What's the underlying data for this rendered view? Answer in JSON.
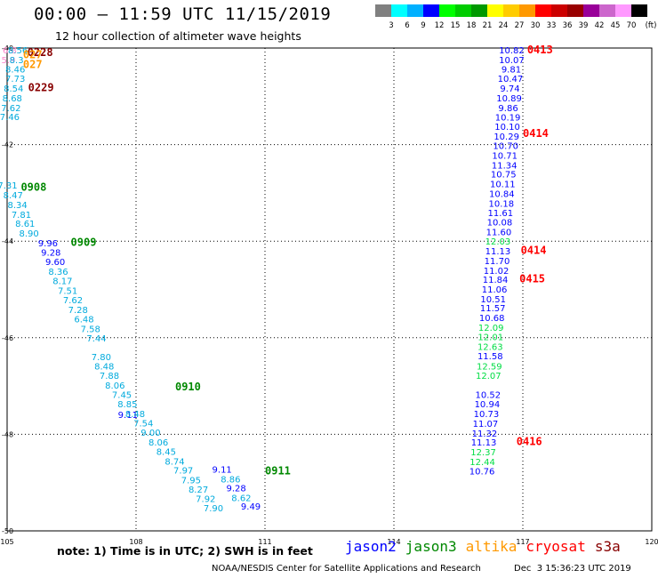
{
  "header": {
    "title": "00:00 – 11:59 UTC 11/15/2019",
    "subtitle": "12 hour collection of altimeter wave heights"
  },
  "colorbar": {
    "colors": [
      "#808080",
      "#00ffff",
      "#00b0ff",
      "#0000ff",
      "#00ff00",
      "#00cc00",
      "#009900",
      "#ffff00",
      "#ffcc00",
      "#ff9900",
      "#ff0000",
      "#cc0000",
      "#990000",
      "#990099",
      "#cc66cc",
      "#ff99ff",
      "#000000"
    ],
    "labels": [
      "3",
      "6",
      "9",
      "12",
      "15",
      "18",
      "21",
      "24",
      "27",
      "30",
      "33",
      "36",
      "39",
      "42",
      "45",
      "70",
      "(ft)"
    ]
  },
  "footer": {
    "note": "note: 1) Time is in UTC; 2) SWH is in feet",
    "credit": "NOAA/NESDIS Center for Satellite Applications and Research",
    "stamp": "Dec  3 15:36:23 UTC 2019"
  },
  "legend": [
    {
      "label": "jason2",
      "color": "#0000ff"
    },
    {
      "label": "jason3",
      "color": "#008800"
    },
    {
      "label": "altika",
      "color": "#ff9900"
    },
    {
      "label": "cryosat",
      "color": "#ff0000"
    },
    {
      "label": "s3a",
      "color": "#880000"
    }
  ],
  "chart_data": {
    "type": "scatter",
    "xlim": [
      105,
      120
    ],
    "ylim": [
      -50,
      -40
    ],
    "xticks": [
      "105",
      "108",
      "111",
      "114",
      "117",
      "120"
    ],
    "yticks": [
      "-40",
      "-42",
      "-44",
      "-46",
      "-48",
      "-50"
    ],
    "grid": true,
    "series": [
      {
        "name": "jason2",
        "color": "#0000ff",
        "points": [
          {
            "x": 116.74,
            "y": -40.04,
            "v": "10.82"
          },
          {
            "x": 116.74,
            "y": -40.24,
            "v": "10.07"
          },
          {
            "x": 116.73,
            "y": -40.43,
            "v": "9.81"
          },
          {
            "x": 116.71,
            "y": -40.63,
            "v": "10.47"
          },
          {
            "x": 116.7,
            "y": -40.83,
            "v": "9.74"
          },
          {
            "x": 116.68,
            "y": -41.03,
            "v": "10.89"
          },
          {
            "x": 116.66,
            "y": -41.23,
            "v": "9.86"
          },
          {
            "x": 116.65,
            "y": -41.43,
            "v": "10.19"
          },
          {
            "x": 116.64,
            "y": -41.62,
            "v": "10.10"
          },
          {
            "x": 116.62,
            "y": -41.82,
            "v": "10.29"
          },
          {
            "x": 116.6,
            "y": -42.02,
            "v": "10.70"
          },
          {
            "x": 116.58,
            "y": -42.22,
            "v": "10.71"
          },
          {
            "x": 116.57,
            "y": -42.42,
            "v": "11.34"
          },
          {
            "x": 116.55,
            "y": -42.61,
            "v": "10.75"
          },
          {
            "x": 116.53,
            "y": -42.81,
            "v": "10.11"
          },
          {
            "x": 116.51,
            "y": -43.01,
            "v": "10.84"
          },
          {
            "x": 116.5,
            "y": -43.21,
            "v": "10.18"
          },
          {
            "x": 116.48,
            "y": -43.41,
            "v": "11.61"
          },
          {
            "x": 116.46,
            "y": -43.6,
            "v": "10.08"
          },
          {
            "x": 116.44,
            "y": -43.8,
            "v": "11.60"
          },
          {
            "x": 116.42,
            "y": -44.2,
            "v": "11.13"
          },
          {
            "x": 116.4,
            "y": -44.4,
            "v": "11.70"
          },
          {
            "x": 116.38,
            "y": -44.6,
            "v": "11.02"
          },
          {
            "x": 116.36,
            "y": -44.79,
            "v": "11.84"
          },
          {
            "x": 116.34,
            "y": -44.99,
            "v": "11.06"
          },
          {
            "x": 116.31,
            "y": -45.19,
            "v": "10.51"
          },
          {
            "x": 116.3,
            "y": -45.38,
            "v": "11.57"
          },
          {
            "x": 116.28,
            "y": -45.58,
            "v": "10.68"
          },
          {
            "x": 116.24,
            "y": -46.37,
            "v": "11.58"
          },
          {
            "x": 116.19,
            "y": -47.17,
            "v": "10.52"
          },
          {
            "x": 116.17,
            "y": -47.37,
            "v": "10.94"
          },
          {
            "x": 116.15,
            "y": -47.57,
            "v": "10.73"
          },
          {
            "x": 116.13,
            "y": -47.77,
            "v": "11.07"
          },
          {
            "x": 116.11,
            "y": -47.97,
            "v": "11.32"
          },
          {
            "x": 116.09,
            "y": -48.16,
            "v": "11.13"
          },
          {
            "x": 116.05,
            "y": -48.76,
            "v": "10.76"
          },
          {
            "x": 105.95,
            "y": -44.03,
            "v": "9.96"
          },
          {
            "x": 106.02,
            "y": -44.23,
            "v": "9.28"
          },
          {
            "x": 106.12,
            "y": -44.42,
            "v": "9.60"
          },
          {
            "x": 107.81,
            "y": -47.59,
            "v": "9.11"
          },
          {
            "x": 110.0,
            "y": -48.72,
            "v": "9.11"
          },
          {
            "x": 110.33,
            "y": -49.11,
            "v": "9.28"
          },
          {
            "x": 110.67,
            "y": -49.48,
            "v": "9.49"
          }
        ]
      },
      {
        "name": "jason3",
        "color": "#00dd44",
        "points": [
          {
            "x": 116.42,
            "y": -44.0,
            "v": "12.03"
          },
          {
            "x": 116.26,
            "y": -45.78,
            "v": "12.09"
          },
          {
            "x": 116.25,
            "y": -45.98,
            "v": "12.01"
          },
          {
            "x": 116.24,
            "y": -46.18,
            "v": "12.63"
          },
          {
            "x": 116.22,
            "y": -46.58,
            "v": "12.59"
          },
          {
            "x": 116.2,
            "y": -46.78,
            "v": "12.07"
          },
          {
            "x": 116.08,
            "y": -48.36,
            "v": "12.37"
          },
          {
            "x": 116.06,
            "y": -48.56,
            "v": "12.44"
          }
        ]
      },
      {
        "name": "altika",
        "color": "#00aadd",
        "points": [
          {
            "x": 105.19,
            "y": -40.43,
            "v": "8.46"
          },
          {
            "x": 105.19,
            "y": -40.63,
            "v": "7.73"
          },
          {
            "x": 105.15,
            "y": -40.83,
            "v": "8.54"
          },
          {
            "x": 105.12,
            "y": -41.03,
            "v": "8.68"
          },
          {
            "x": 105.09,
            "y": -41.23,
            "v": "7.62"
          },
          {
            "x": 105.06,
            "y": -41.42,
            "v": "7.46"
          },
          {
            "x": 105.01,
            "y": -42.84,
            "v": "7.31"
          },
          {
            "x": 105.14,
            "y": -43.04,
            "v": "8.47"
          },
          {
            "x": 105.24,
            "y": -43.24,
            "v": "8.34"
          },
          {
            "x": 105.33,
            "y": -43.44,
            "v": "7.81"
          },
          {
            "x": 105.42,
            "y": -43.63,
            "v": "8.61"
          },
          {
            "x": 105.51,
            "y": -43.83,
            "v": "8.90"
          },
          {
            "x": 106.19,
            "y": -44.62,
            "v": "8.36"
          },
          {
            "x": 106.29,
            "y": -44.82,
            "v": "8.17"
          },
          {
            "x": 106.41,
            "y": -45.02,
            "v": "7.51"
          },
          {
            "x": 106.53,
            "y": -45.21,
            "v": "7.62"
          },
          {
            "x": 106.65,
            "y": -45.41,
            "v": "7.28"
          },
          {
            "x": 106.79,
            "y": -45.61,
            "v": "6.48"
          },
          {
            "x": 106.94,
            "y": -45.81,
            "v": "7.58"
          },
          {
            "x": 107.08,
            "y": -46.0,
            "v": "7.44"
          },
          {
            "x": 107.19,
            "y": -46.39,
            "v": "7.80"
          },
          {
            "x": 107.26,
            "y": -46.58,
            "v": "8.48"
          },
          {
            "x": 107.38,
            "y": -46.78,
            "v": "7.88"
          },
          {
            "x": 107.51,
            "y": -46.98,
            "v": "8.06"
          },
          {
            "x": 107.67,
            "y": -47.17,
            "v": "7.45"
          },
          {
            "x": 107.8,
            "y": -47.37,
            "v": "8.85"
          },
          {
            "x": 107.98,
            "y": -47.57,
            "v": "8.48"
          },
          {
            "x": 108.17,
            "y": -47.76,
            "v": "7.54"
          },
          {
            "x": 108.34,
            "y": -47.96,
            "v": "9.00"
          },
          {
            "x": 108.52,
            "y": -48.16,
            "v": "8.06"
          },
          {
            "x": 108.7,
            "y": -48.35,
            "v": "8.45"
          },
          {
            "x": 108.9,
            "y": -48.55,
            "v": "8.74"
          },
          {
            "x": 109.1,
            "y": -48.74,
            "v": "7.97"
          },
          {
            "x": 109.28,
            "y": -48.94,
            "v": "7.95"
          },
          {
            "x": 109.45,
            "y": -49.13,
            "v": "8.27"
          },
          {
            "x": 109.62,
            "y": -49.33,
            "v": "7.92"
          },
          {
            "x": 109.8,
            "y": -49.52,
            "v": "7.90"
          },
          {
            "x": 110.2,
            "y": -48.92,
            "v": "8.86"
          },
          {
            "x": 110.45,
            "y": -49.31,
            "v": "8.62"
          }
        ]
      },
      {
        "name": "cryosat",
        "color": "#ff0000",
        "points": []
      },
      {
        "name": "s3a",
        "color": "#880000",
        "points": []
      },
      {
        "name": "",
        "color": "#ff88cc",
        "points": [
          {
            "x": 105.06,
            "y": -40.04,
            "v": "6.8"
          },
          {
            "x": 105.03,
            "y": -40.24,
            "v": "5.9"
          }
        ]
      },
      {
        "name": "",
        "color": "#00aadd",
        "points": [
          {
            "x": 105.25,
            "y": -40.04,
            "v": "8.56"
          },
          {
            "x": 105.22,
            "y": -40.24,
            "v": "8.3"
          }
        ]
      }
    ],
    "annotations": [
      {
        "text": "0228",
        "x": 105.47,
        "y": -40.07,
        "color": "#880000"
      },
      {
        "text": "027",
        "x": 105.37,
        "y": -40.12,
        "color": "#ff9900"
      },
      {
        "text": "027",
        "x": 105.37,
        "y": -40.32,
        "color": "#ff9900"
      },
      {
        "text": "0229",
        "x": 105.49,
        "y": -40.8,
        "color": "#880000"
      },
      {
        "text": "0908",
        "x": 105.32,
        "y": -42.86,
        "color": "#008800"
      },
      {
        "text": "0909",
        "x": 106.48,
        "y": -44.01,
        "color": "#008800"
      },
      {
        "text": "0910",
        "x": 108.91,
        "y": -47.0,
        "color": "#008800"
      },
      {
        "text": "0911",
        "x": 111.0,
        "y": -48.74,
        "color": "#008800"
      },
      {
        "text": "0413",
        "x": 117.1,
        "y": -40.02,
        "color": "#ff0000"
      },
      {
        "text": "0414",
        "x": 117.0,
        "y": -41.75,
        "color": "#ff0000"
      },
      {
        "text": "0414",
        "x": 116.95,
        "y": -44.17,
        "color": "#ff0000"
      },
      {
        "text": "0415",
        "x": 116.92,
        "y": -44.76,
        "color": "#ff0000"
      },
      {
        "text": "0416",
        "x": 116.85,
        "y": -48.13,
        "color": "#ff0000"
      }
    ]
  }
}
